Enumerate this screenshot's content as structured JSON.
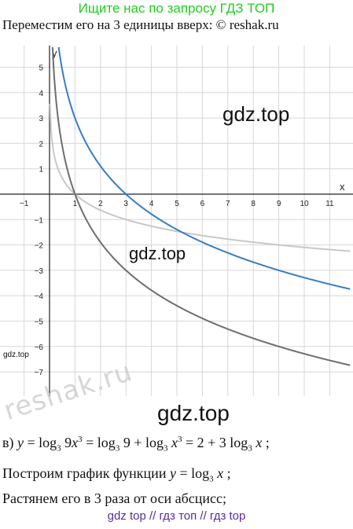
{
  "banner": {
    "top": "Ищите нас по запросу ГДЗ ТОП"
  },
  "header": {
    "text": "Переместим его на 3 единицы вверх:",
    "copyright": "© reshak.ru"
  },
  "watermarks": {
    "gdz1": "gdz.top",
    "gdz2": "gdz.top",
    "gdz_small": "gdz.top",
    "gdz3": "gdz.top",
    "reshak": "reshak.ru"
  },
  "chart_data": {
    "type": "line",
    "xlabel": "x",
    "ylabel": "y",
    "xlim": [
      -1.4,
      11.8
    ],
    "ylim": [
      -7.8,
      5.6
    ],
    "x_ticks": [
      -1,
      1,
      2,
      3,
      4,
      5,
      6,
      7,
      8,
      9,
      10,
      11
    ],
    "y_ticks": [
      5,
      4,
      3,
      2,
      1,
      -1,
      -2,
      -3,
      -4,
      -5,
      -6,
      -7
    ],
    "grid": true,
    "series": [
      {
        "function": "log_{1/3}(x)",
        "color": "#c8c8c8"
      },
      {
        "function": "3·log_{1/3}(x)",
        "color": "#6e6e6e"
      },
      {
        "function": "3·log_{1/3}(x) + 3",
        "color": "#3a7cc3"
      }
    ]
  },
  "solution": {
    "part_label": "в)",
    "equation": "y = log₃ 9x³ = log₃ 9 + log₃ x³ = 2 + 3 log₃ x ;",
    "step2": "Построим график функции y = log₃ x ;",
    "step3": "Растянем его в 3 раза от оси абсцисс;"
  },
  "footer": {
    "text": "gdz top  //  гдз топ  //  гдз top"
  }
}
